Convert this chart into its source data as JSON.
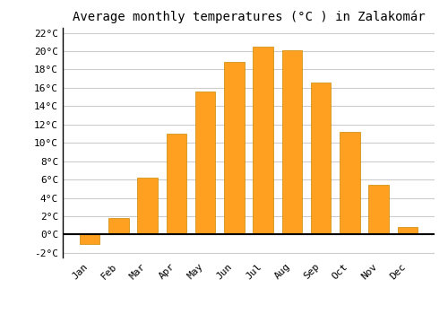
{
  "title": "Average monthly temperatures (°C ) in Zalakomár",
  "months": [
    "Jan",
    "Feb",
    "Mar",
    "Apr",
    "May",
    "Jun",
    "Jul",
    "Aug",
    "Sep",
    "Oct",
    "Nov",
    "Dec"
  ],
  "values": [
    -1.0,
    1.8,
    6.2,
    11.0,
    15.6,
    18.8,
    20.5,
    20.1,
    16.6,
    11.2,
    5.4,
    0.8
  ],
  "bar_color": "#FFA020",
  "bar_edge_color": "#CC8800",
  "ylim": [
    -2.5,
    22.5
  ],
  "yticks": [
    -2,
    0,
    2,
    4,
    6,
    8,
    10,
    12,
    14,
    16,
    18,
    20,
    22
  ],
  "background_color": "#ffffff",
  "grid_color": "#cccccc",
  "title_fontsize": 10,
  "tick_fontsize": 8,
  "font_family": "monospace"
}
